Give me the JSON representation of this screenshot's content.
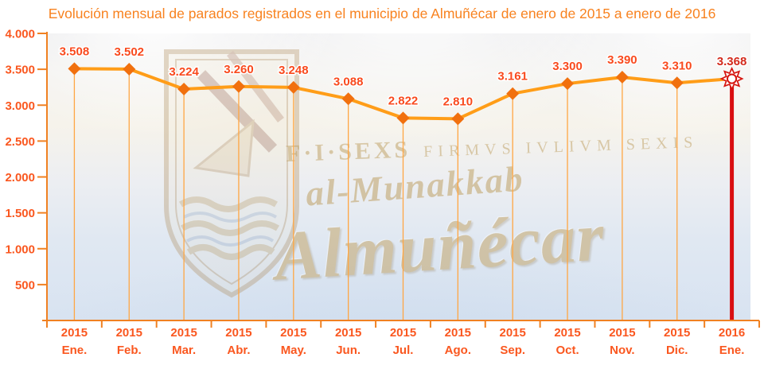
{
  "title": "Evolución mensual de parados registrados en el municipio de Almuñécar de enero de 2015 a enero de 2016",
  "watermark": {
    "motto_large": "F·I·SEXS",
    "motto_small": "FIRMVS IVLIVM SEXIS",
    "arabic_name": "al-Munakkab",
    "city_name": "Almuñécar"
  },
  "colors": {
    "title": "#F8821F",
    "axis": "#F08122",
    "axis_labels": "#FA571F",
    "point_labels": "#F94A1E",
    "line": "#FF9D18",
    "marker": "#F1700E",
    "dropline": "#FFA643",
    "highlight_line": "#D90E11",
    "highlight_label": "#D32A1C",
    "highlight_marker_stroke": "#D6150F",
    "highlight_marker_fill": "#FFFFFF"
  },
  "chart_data": {
    "type": "line",
    "title": "Evolución mensual de parados registrados en el municipio de Almuñécar de enero de 2015 a enero de 2016",
    "categories": [
      {
        "year": "2015",
        "month": "Ene."
      },
      {
        "year": "2015",
        "month": "Feb."
      },
      {
        "year": "2015",
        "month": "Mar."
      },
      {
        "year": "2015",
        "month": "Abr."
      },
      {
        "year": "2015",
        "month": "May."
      },
      {
        "year": "2015",
        "month": "Jun."
      },
      {
        "year": "2015",
        "month": "Jul."
      },
      {
        "year": "2015",
        "month": "Ago."
      },
      {
        "year": "2015",
        "month": "Sep."
      },
      {
        "year": "2015",
        "month": "Oct."
      },
      {
        "year": "2015",
        "month": "Nov."
      },
      {
        "year": "2015",
        "month": "Dic."
      },
      {
        "year": "2016",
        "month": "Ene."
      }
    ],
    "values": [
      3508,
      3502,
      3224,
      3260,
      3248,
      3088,
      2822,
      2810,
      3161,
      3300,
      3390,
      3310,
      3368
    ],
    "point_labels": [
      "3.508",
      "3.502",
      "3.224",
      "3.260",
      "3.248",
      "3.088",
      "2.822",
      "2.810",
      "3.161",
      "3.300",
      "3.390",
      "3.310",
      "3.368"
    ],
    "highlight_index": 12,
    "ylim": [
      0,
      4000
    ],
    "yticks": [
      {
        "value": 4000,
        "label": "4.000"
      },
      {
        "value": 3500,
        "label": "3.500"
      },
      {
        "value": 3000,
        "label": "3.000"
      },
      {
        "value": 2500,
        "label": "2.500"
      },
      {
        "value": 2000,
        "label": "2.000"
      },
      {
        "value": 1500,
        "label": "1.500"
      },
      {
        "value": 1000,
        "label": "1.000"
      },
      {
        "value": 500,
        "label": "500"
      }
    ],
    "xlabel": "",
    "ylabel": "",
    "grid": "off",
    "legend": "none",
    "marker": "diamond",
    "highlight_marker": "sun"
  }
}
